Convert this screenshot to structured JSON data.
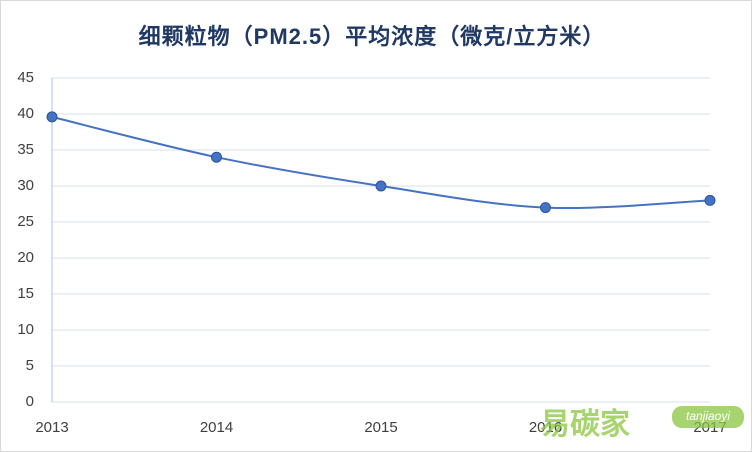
{
  "chart_data": {
    "type": "line",
    "title": "细颗粒物（PM2.5）平均浓度（微克/立方米）",
    "categories": [
      "2013",
      "2014",
      "2015",
      "2016",
      "2017"
    ],
    "series": [
      {
        "name": "PM2.5",
        "color": "#4472c4",
        "values": [
          39.6,
          34,
          30,
          27,
          28
        ]
      }
    ],
    "ylim": [
      0,
      45
    ],
    "yticks": [
      0,
      5,
      10,
      15,
      20,
      25,
      30,
      35,
      40,
      45
    ],
    "grid": true,
    "smooth": true
  },
  "watermark": {
    "text": "易碳家",
    "tag": "tanjiaoyi"
  }
}
